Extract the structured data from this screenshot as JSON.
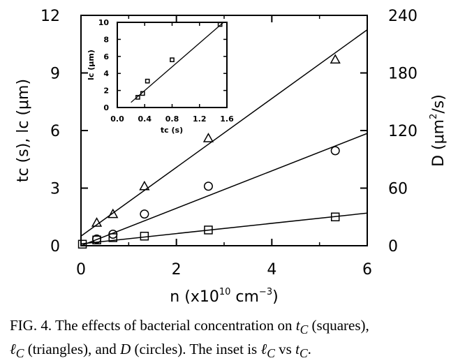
{
  "chart_data": [
    {
      "type": "scatter",
      "title": "",
      "xlabel": "n (x10^10 cm^-3)",
      "ylabel_left": "tc (s), lc (μm)",
      "ylabel_right": "D (μm^2/s)",
      "xlim": [
        0,
        6
      ],
      "ylim_left": [
        0,
        12
      ],
      "ylim_right": [
        0,
        240
      ],
      "x_ticks": [
        "0",
        "2",
        "4",
        "6"
      ],
      "y_ticks_left": [
        "0",
        "3",
        "6",
        "9",
        "12"
      ],
      "y_ticks_right": [
        "0",
        "60",
        "120",
        "180",
        "240"
      ],
      "series": [
        {
          "name": "tc",
          "marker": "square",
          "axis": "left",
          "x": [
            0.03,
            0.33,
            0.67,
            1.33,
            2.67,
            5.33
          ],
          "y": [
            0.08,
            0.3,
            0.42,
            0.5,
            0.82,
            1.5
          ],
          "fit": [
            [
              0,
              0.1
            ],
            [
              6,
              1.7
            ]
          ]
        },
        {
          "name": "lc",
          "marker": "triangle",
          "axis": "left",
          "x": [
            0.33,
            0.67,
            1.33,
            2.67,
            5.33
          ],
          "y": [
            1.2,
            1.65,
            3.1,
            5.6,
            9.7
          ],
          "fit": [
            [
              0,
              0.5
            ],
            [
              6,
              11.25
            ]
          ]
        },
        {
          "name": "D",
          "marker": "circle",
          "axis": "right",
          "x": [
            0.33,
            0.67,
            1.33,
            2.67,
            5.33
          ],
          "y": [
            7,
            12,
            33,
            62,
            99
          ],
          "fit": [
            [
              0,
              0
            ],
            [
              6,
              117
            ]
          ]
        }
      ]
    },
    {
      "type": "scatter",
      "title": "",
      "xlabel": "tc (s)",
      "ylabel": "lc (μm)",
      "xlim": [
        0,
        1.6
      ],
      "ylim": [
        0,
        10
      ],
      "x_ticks": [
        "0.0",
        "0.4",
        "0.8",
        "1.2",
        "1.6"
      ],
      "y_ticks": [
        "0",
        "2",
        "4",
        "6",
        "8",
        "10"
      ],
      "series": [
        {
          "marker": "square",
          "x": [
            0.3,
            0.37,
            0.44,
            0.8,
            1.5
          ],
          "y": [
            1.2,
            1.65,
            3.1,
            5.6,
            9.75
          ],
          "fit": [
            [
              0.2,
              0.6
            ],
            [
              1.55,
              10.0
            ]
          ]
        }
      ]
    }
  ],
  "main_axis_labels": {
    "x": {
      "pre": "n  (x10",
      "sup1": "10",
      "mid": "  cm",
      "sup2": "−3",
      "post": ")"
    },
    "y_left": "tc  (s),  lc  (μm)",
    "y_right_pre": "D  (μm",
    "y_right_sup": "2",
    "y_right_post": "/s)"
  },
  "inset_axis_labels": {
    "x": "tc (s)",
    "y": "lc (μm)"
  },
  "caption": {
    "line1_a": "FIG. 4.    The effects of bacterial concentration on ",
    "line1_var": "t",
    "line1_sub": "C",
    "line1_b": " (squares),",
    "line2_var1": "ℓ",
    "line2_sub1": "C",
    "line2_a": " (triangles), and ",
    "line2_var2": "D",
    "line2_b": " (circles). The inset is ",
    "line2_var3": "ℓ",
    "line2_sub3": "C",
    "line2_c": " vs ",
    "line2_var4": "t",
    "line2_sub4": "C",
    "line2_d": "."
  }
}
